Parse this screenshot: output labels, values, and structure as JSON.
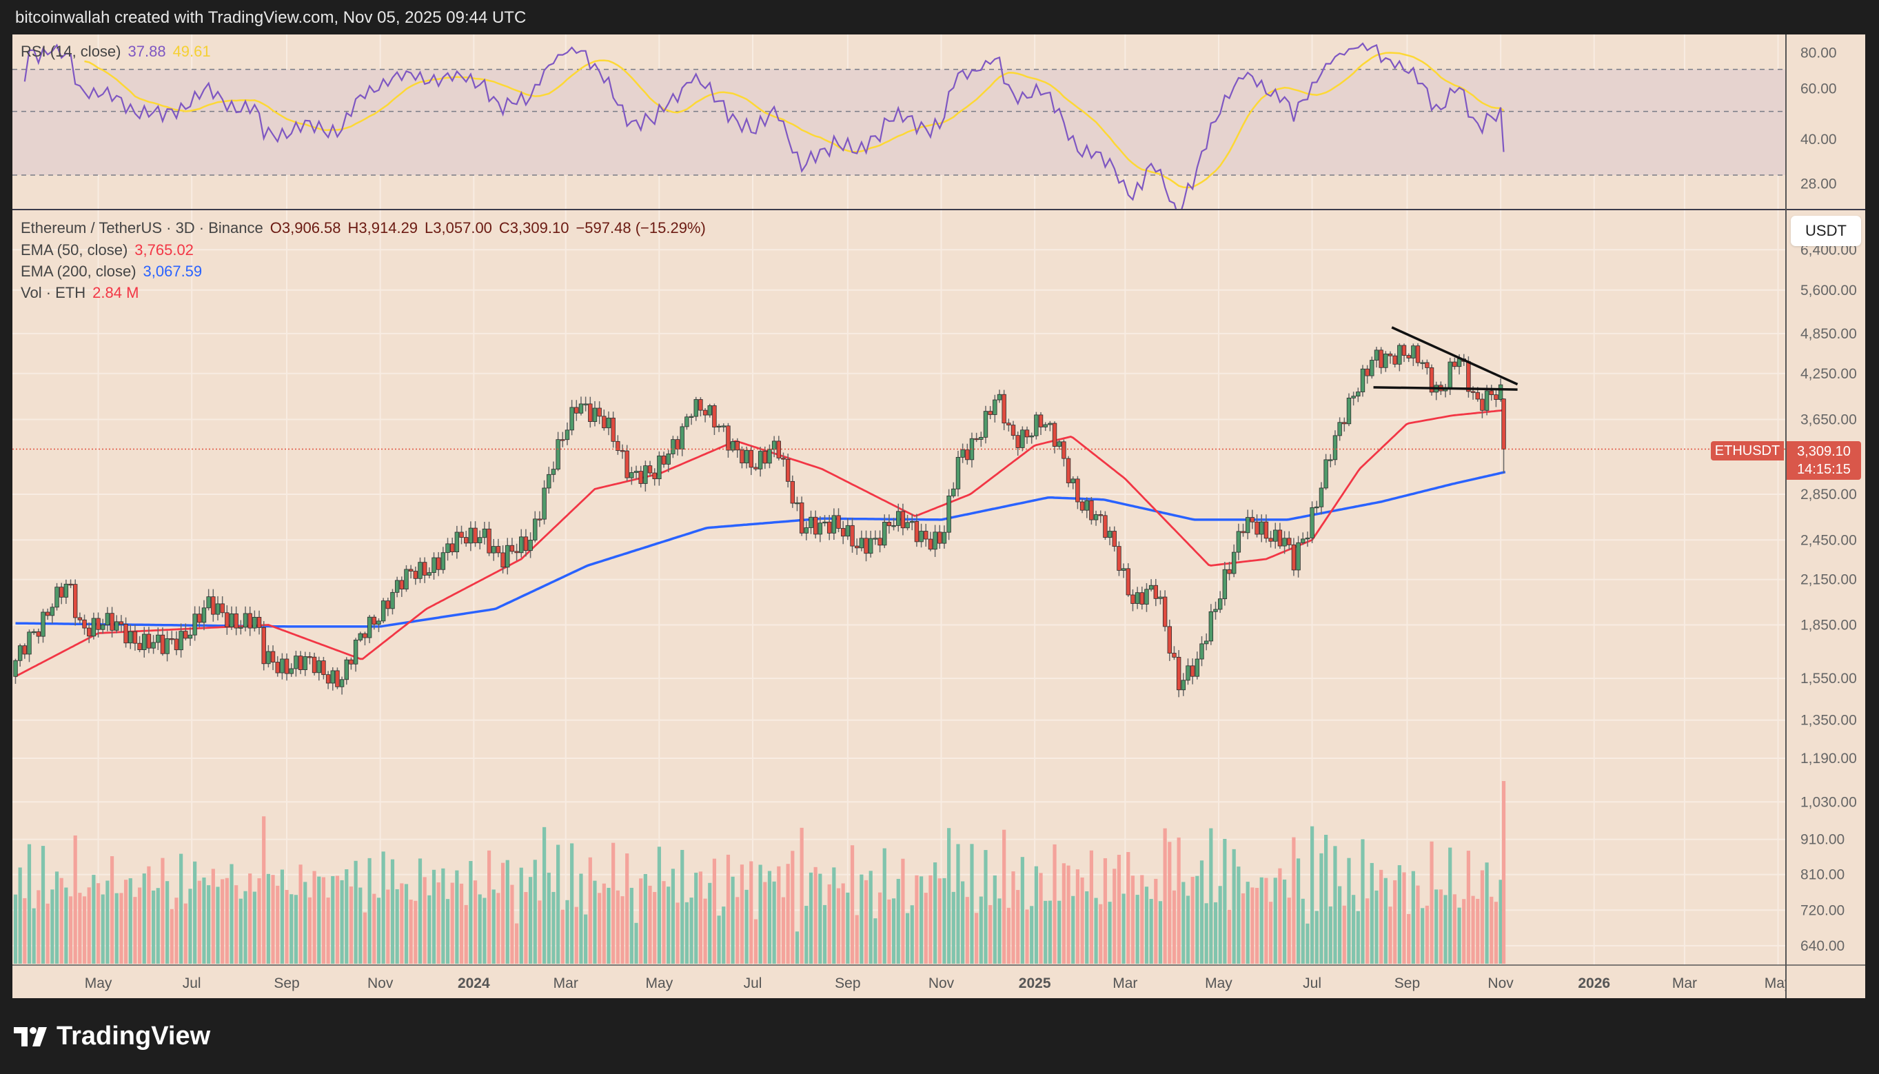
{
  "header": {
    "title": "bitcoinwallah created with TradingView.com, Nov 05, 2025 09:44 UTC"
  },
  "rsi_legend": {
    "label": "RSI (14, close)",
    "rsi_value": "37.88",
    "ma_value": "49.61"
  },
  "main_legend": {
    "symbol": "Ethereum / TetherUS · 3D · Binance",
    "open": "O3,906.58",
    "high": "H3,914.29",
    "low": "L3,057.00",
    "close": "C3,309.10",
    "change": "−597.48 (−15.29%)",
    "ema50_label": "EMA (50, close)",
    "ema50_value": "3,765.02",
    "ema200_label": "EMA (200, close)",
    "ema200_value": "3,067.59",
    "vol_label": "Vol · ETH",
    "vol_value": "2.84 M"
  },
  "price_axis": {
    "currency_button": "USDT",
    "symbol_tag": "ETHUSDT",
    "last_price": "3,309.10",
    "countdown": "14:15:15"
  },
  "footer": {
    "brand": "TradingView"
  },
  "colors": {
    "background": "#f2e0d0",
    "up": "#4f9a6a",
    "down": "#e04b3f",
    "ema50": "#f23645",
    "ema200": "#2962ff",
    "rsi": "#7e57c2",
    "rsi_ma": "#fdd835",
    "vol_up": "#80c4ad",
    "vol_down": "#f4a39b"
  },
  "chart_data": {
    "type": "candlestick",
    "title": "Ethereum / TetherUS · 3D · Binance",
    "scale": "log",
    "price_ticks": [
      6400,
      5600,
      4850,
      4250,
      3650,
      2850,
      2450,
      2150,
      1850,
      1550,
      1350,
      1190,
      1030,
      910,
      810,
      720,
      640
    ],
    "price_tick_labels": [
      "6,400.00",
      "5,600.00",
      "4,850.00",
      "4,250.00",
      "3,650.00",
      "2,850.00",
      "2,450.00",
      "2,150.00",
      "1,850.00",
      "1,550.00",
      "1,350.00",
      "1,190.00",
      "1,030.00",
      "910.00",
      "810.00",
      "720.00",
      "640.00"
    ],
    "rsi_ticks": [
      80,
      60,
      40,
      28
    ],
    "rsi_tick_labels": [
      "80.00",
      "60.00",
      "40.00",
      "28.00"
    ],
    "rsi_bands": [
      70,
      50,
      30
    ],
    "time_ticks": [
      {
        "label": "May",
        "date": "2023-05-01"
      },
      {
        "label": "Jul",
        "date": "2023-07-01"
      },
      {
        "label": "Sep",
        "date": "2023-09-01"
      },
      {
        "label": "Nov",
        "date": "2023-11-01"
      },
      {
        "label": "2024",
        "date": "2024-01-01"
      },
      {
        "label": "Mar",
        "date": "2024-03-01"
      },
      {
        "label": "May",
        "date": "2024-05-01"
      },
      {
        "label": "Jul",
        "date": "2024-07-01"
      },
      {
        "label": "Sep",
        "date": "2024-09-01"
      },
      {
        "label": "Nov",
        "date": "2024-11-01"
      },
      {
        "label": "2025",
        "date": "2025-01-01"
      },
      {
        "label": "Mar",
        "date": "2025-03-01"
      },
      {
        "label": "May",
        "date": "2025-05-01"
      },
      {
        "label": "Jul",
        "date": "2025-07-01"
      },
      {
        "label": "Sep",
        "date": "2025-09-01"
      },
      {
        "label": "Nov",
        "date": "2025-11-01"
      },
      {
        "label": "2026",
        "date": "2026-01-01"
      },
      {
        "label": "Mar",
        "date": "2026-03-01"
      },
      {
        "label": "May",
        "date": "2026-05-01"
      }
    ],
    "candle_interval_days": 3,
    "close_path": [
      [
        "2023-03-08",
        1560
      ],
      [
        "2023-03-20",
        1800
      ],
      [
        "2023-04-15",
        2100
      ],
      [
        "2023-04-22",
        1870
      ],
      [
        "2023-05-20",
        1820
      ],
      [
        "2023-06-15",
        1700
      ],
      [
        "2023-07-15",
        1950
      ],
      [
        "2023-08-15",
        1850
      ],
      [
        "2023-08-20",
        1650
      ],
      [
        "2023-09-15",
        1620
      ],
      [
        "2023-10-10",
        1560
      ],
      [
        "2023-10-25",
        1800
      ],
      [
        "2023-11-10",
        2050
      ],
      [
        "2023-12-10",
        2300
      ],
      [
        "2024-01-10",
        2550
      ],
      [
        "2024-01-22",
        2250
      ],
      [
        "2024-02-10",
        2500
      ],
      [
        "2024-03-12",
        3950
      ],
      [
        "2024-04-01",
        3500
      ],
      [
        "2024-04-15",
        3100
      ],
      [
        "2024-05-01",
        3000
      ],
      [
        "2024-05-25",
        3800
      ],
      [
        "2024-06-15",
        3550
      ],
      [
        "2024-07-05",
        3050
      ],
      [
        "2024-07-20",
        3450
      ],
      [
        "2024-08-05",
        2500
      ],
      [
        "2024-08-25",
        2650
      ],
      [
        "2024-09-10",
        2350
      ],
      [
        "2024-10-01",
        2600
      ],
      [
        "2024-11-05",
        2450
      ],
      [
        "2024-11-15",
        3150
      ],
      [
        "2024-12-10",
        3900
      ],
      [
        "2024-12-20",
        3400
      ],
      [
        "2025-01-07",
        3650
      ],
      [
        "2025-01-20",
        3300
      ],
      [
        "2025-02-03",
        2800
      ],
      [
        "2025-02-25",
        2400
      ],
      [
        "2025-03-10",
        2000
      ],
      [
        "2025-03-25",
        2050
      ],
      [
        "2025-04-08",
        1550
      ],
      [
        "2025-04-20",
        1600
      ],
      [
        "2025-05-08",
        2200
      ],
      [
        "2025-05-20",
        2550
      ],
      [
        "2025-06-15",
        2500
      ],
      [
        "2025-06-22",
        2250
      ],
      [
        "2025-07-01",
        2500
      ],
      [
        "2025-07-15",
        3300
      ],
      [
        "2025-07-28",
        3750
      ],
      [
        "2025-08-13",
        4600
      ],
      [
        "2025-08-25",
        4400
      ],
      [
        "2025-09-12",
        4600
      ],
      [
        "2025-09-25",
        3900
      ],
      [
        "2025-10-08",
        4500
      ],
      [
        "2025-10-20",
        3900
      ],
      [
        "2025-10-31",
        3906.58
      ]
    ],
    "last_candle": {
      "date": "2025-11-03",
      "open": 3906.58,
      "high": 3914.29,
      "low": 3057.0,
      "close": 3309.1
    },
    "ema50": [
      [
        "2023-03-08",
        1560
      ],
      [
        "2023-05-01",
        1800
      ],
      [
        "2023-08-20",
        1850
      ],
      [
        "2023-10-20",
        1650
      ],
      [
        "2023-12-01",
        1950
      ],
      [
        "2024-02-01",
        2300
      ],
      [
        "2024-03-20",
        2900
      ],
      [
        "2024-05-01",
        3050
      ],
      [
        "2024-06-20",
        3400
      ],
      [
        "2024-08-15",
        3100
      ],
      [
        "2024-10-15",
        2650
      ],
      [
        "2024-11-20",
        2850
      ],
      [
        "2025-01-01",
        3350
      ],
      [
        "2025-01-25",
        3450
      ],
      [
        "2025-03-01",
        3000
      ],
      [
        "2025-04-25",
        2250
      ],
      [
        "2025-06-01",
        2300
      ],
      [
        "2025-07-01",
        2450
      ],
      [
        "2025-08-01",
        3100
      ],
      [
        "2025-09-01",
        3600
      ],
      [
        "2025-10-01",
        3700
      ],
      [
        "2025-11-04",
        3765.02
      ]
    ],
    "ema200": [
      [
        "2023-03-08",
        1860
      ],
      [
        "2023-09-01",
        1840
      ],
      [
        "2023-11-01",
        1840
      ],
      [
        "2024-01-15",
        1950
      ],
      [
        "2024-03-15",
        2250
      ],
      [
        "2024-06-01",
        2550
      ],
      [
        "2024-08-15",
        2630
      ],
      [
        "2024-11-01",
        2620
      ],
      [
        "2025-01-10",
        2820
      ],
      [
        "2025-02-15",
        2800
      ],
      [
        "2025-04-15",
        2620
      ],
      [
        "2025-06-15",
        2620
      ],
      [
        "2025-08-15",
        2780
      ],
      [
        "2025-10-01",
        2950
      ],
      [
        "2025-11-04",
        3067.59
      ]
    ],
    "trendlines": [
      {
        "name": "descending-resistance",
        "from": [
          "2025-08-22",
          4950
        ],
        "to": [
          "2025-11-12",
          4100
        ]
      },
      {
        "name": "horizontal-support",
        "from": [
          "2025-08-10",
          4060
        ],
        "to": [
          "2025-11-12",
          4030
        ]
      }
    ]
  }
}
